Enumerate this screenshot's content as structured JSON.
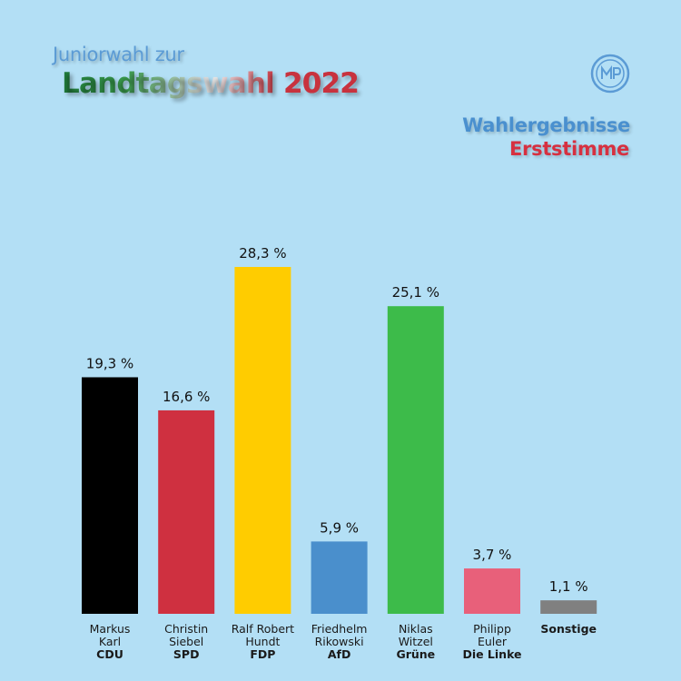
{
  "header": {
    "line1": "Juniorwahl zur",
    "line2": "Landtagswahl",
    "year": "2022",
    "subtitle1": "Wahlergebnisse",
    "subtitle2": "Erststimme"
  },
  "logo": {
    "icon": "school-logo-icon"
  },
  "chart_data": {
    "type": "bar",
    "title": "Juniorwahl zur Landtagswahl 2022 – Wahlergebnisse Erststimme",
    "unit": "%",
    "ylim": [
      0,
      30
    ],
    "grid": false,
    "categories": [
      {
        "first": "Markus",
        "last": "Karl",
        "party": "CDU"
      },
      {
        "first": "Christin",
        "last": "Siebel",
        "party": "SPD"
      },
      {
        "first": "Ralf Robert",
        "last": "Hundt",
        "party": "FDP"
      },
      {
        "first": "Friedhelm",
        "last": "Rikowski",
        "party": "AfD"
      },
      {
        "first": "Niklas",
        "last": "Witzel",
        "party": "Grüne"
      },
      {
        "first": "Philipp",
        "last": "Euler",
        "party": "Die Linke"
      },
      {
        "first": "",
        "last": "",
        "party": "Sonstige"
      }
    ],
    "values": [
      19.3,
      16.6,
      28.3,
      5.9,
      25.1,
      3.7,
      1.1
    ],
    "value_labels": [
      "19,3 %",
      "16,6 %",
      "28,3 %",
      "5,9 %",
      "25,1 %",
      "3,7 %",
      "1,1 %"
    ],
    "colors": [
      "#000000",
      "#cf3040",
      "#ffcc00",
      "#4a8fcc",
      "#3dbb4a",
      "#e8607a",
      "#808080"
    ]
  }
}
